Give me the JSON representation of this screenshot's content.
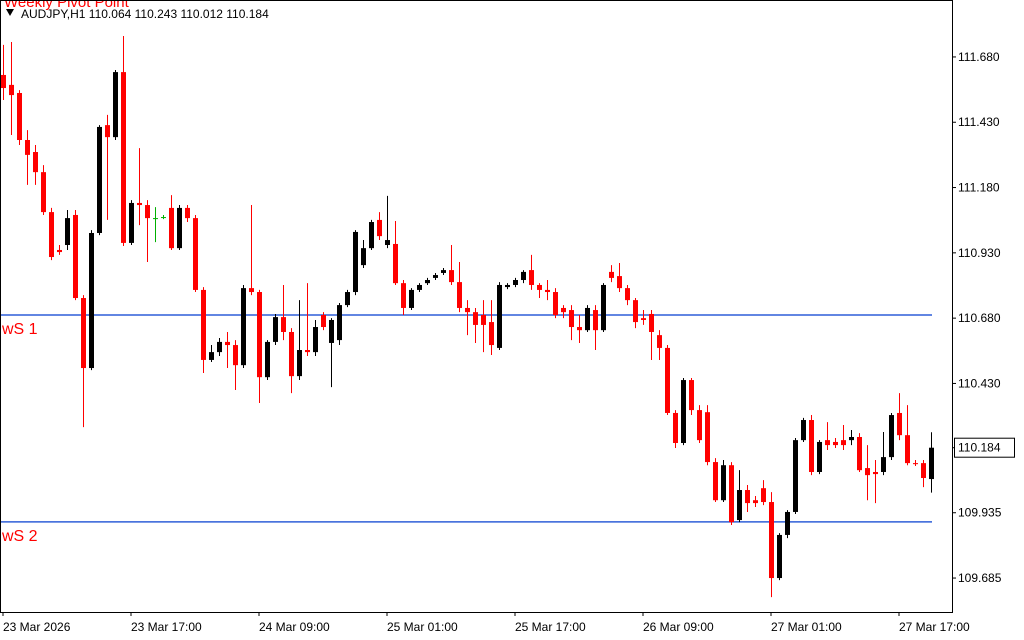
{
  "chart_data": {
    "type": "candlestick",
    "title": "Weekly Pivot Point",
    "header": "AUDJPY,H1  110.064 110.243 110.012 110.184",
    "categories": [
      "23 Mar 2026",
      null,
      null,
      null,
      null,
      null,
      null,
      null,
      null,
      null,
      null,
      null,
      null,
      null,
      null,
      null,
      "23 Mar 17:00",
      null,
      null,
      null,
      null,
      null,
      null,
      null,
      null,
      null,
      null,
      null,
      null,
      null,
      null,
      null,
      "24 Mar 09:00",
      null,
      null,
      null,
      null,
      null,
      null,
      null,
      null,
      null,
      null,
      null,
      null,
      null,
      null,
      null,
      "25 Mar 01:00",
      null,
      null,
      null,
      null,
      null,
      null,
      null,
      null,
      null,
      null,
      null,
      null,
      null,
      null,
      null,
      "25 Mar 17:00",
      null,
      null,
      null,
      null,
      null,
      null,
      null,
      null,
      null,
      null,
      null,
      null,
      null,
      null,
      null,
      "26 Mar 09:00",
      null,
      null,
      null,
      null,
      null,
      null,
      null,
      null,
      null,
      null,
      null,
      null,
      null,
      null,
      null,
      "27 Mar 01:00",
      null,
      null,
      null,
      null,
      null,
      null,
      null,
      null,
      null,
      null,
      null,
      null,
      null,
      null,
      null,
      "27 Mar 17:00",
      null,
      null,
      null,
      null
    ],
    "open": [
      111.611,
      111.573,
      111.542,
      111.362,
      111.316,
      111.239,
      111.086,
      110.941,
      110.96,
      111.075,
      110.757,
      110.489,
      111.006,
      111.419,
      111.373,
      111.622,
      110.968,
      111.121,
      111.113,
      111.063,
      111.067,
      111.102,
      110.948,
      111.102,
      111.063,
      110.788,
      110.52,
      110.55,
      110.589,
      110.577,
      110.5,
      110.795,
      110.78,
      110.454,
      110.589,
      110.684,
      110.627,
      110.458,
      110.558,
      110.55,
      110.692,
      110.585,
      110.596,
      110.73,
      110.78,
      110.883,
      110.948,
      111.056,
      110.96,
      110.964,
      110.814,
      110.719,
      110.788,
      110.814,
      110.834,
      110.853,
      110.864,
      110.818,
      110.719,
      110.703,
      110.692,
      110.665,
      110.566,
      110.799,
      110.807,
      110.826,
      110.864,
      110.807,
      110.788,
      110.78,
      110.719,
      110.711,
      110.646,
      110.634,
      110.711,
      110.634,
      110.857,
      110.841,
      110.795,
      110.749,
      110.68,
      110.696,
      110.615,
      110.566,
      110.317,
      110.202,
      110.443,
      110.328,
      110.32,
      110.129,
      109.983,
      110.117,
      109.907,
      110.022,
      109.983,
      110.029,
      109.976,
      109.685,
      109.85,
      109.938,
      110.213,
      110.29,
      110.091,
      110.213,
      110.206,
      110.213,
      110.213,
      110.225,
      110.106,
      110.091,
      110.091,
      110.148,
      110.317,
      110.232,
      110.125,
      110.125,
      110.064
    ],
    "high": [
      111.726,
      111.737,
      111.553,
      111.4,
      111.343,
      111.266,
      111.102,
      110.96,
      111.094,
      111.094,
      110.768,
      111.017,
      111.419,
      111.458,
      111.63,
      111.76,
      111.132,
      111.331,
      111.132,
      111.105,
      111.075,
      111.151,
      111.113,
      111.113,
      111.075,
      110.799,
      110.577,
      110.604,
      110.627,
      110.596,
      110.807,
      111.113,
      110.788,
      110.596,
      110.696,
      110.807,
      110.642,
      110.749,
      110.814,
      110.673,
      110.703,
      110.68,
      110.738,
      110.788,
      111.017,
      110.979,
      111.056,
      111.086,
      111.148,
      111.052,
      110.826,
      110.795,
      110.814,
      110.834,
      110.853,
      110.872,
      110.96,
      110.895,
      110.749,
      110.719,
      110.749,
      110.749,
      110.818,
      110.814,
      110.834,
      110.864,
      110.922,
      110.814,
      110.826,
      110.795,
      110.73,
      110.73,
      110.692,
      110.73,
      110.73,
      110.814,
      110.883,
      110.891,
      110.807,
      110.757,
      110.711,
      110.711,
      110.634,
      110.577,
      110.328,
      110.451,
      110.451,
      110.347,
      110.347,
      110.144,
      110.137,
      110.129,
      110.098,
      110.041,
      109.999,
      110.06,
      110.014,
      109.857,
      109.945,
      110.221,
      110.298,
      110.309,
      110.213,
      110.282,
      110.221,
      110.271,
      110.252,
      110.24,
      110.194,
      110.137,
      110.244,
      110.317,
      110.393,
      110.347,
      110.137,
      110.137,
      110.243
    ],
    "low": [
      111.515,
      111.381,
      111.343,
      111.19,
      111.19,
      111.075,
      110.902,
      110.922,
      110.941,
      110.749,
      110.263,
      110.481,
      110.998,
      111.056,
      111.362,
      110.956,
      110.96,
      111.036,
      110.895,
      110.971,
      111.059,
      110.941,
      110.941,
      111.048,
      110.78,
      110.47,
      110.512,
      110.535,
      110.489,
      110.405,
      110.489,
      110.768,
      110.355,
      110.443,
      110.577,
      110.596,
      110.393,
      110.443,
      110.535,
      110.535,
      110.634,
      110.416,
      110.577,
      110.722,
      110.768,
      110.872,
      110.941,
      110.979,
      110.948,
      110.807,
      110.692,
      110.711,
      110.78,
      110.807,
      110.826,
      110.845,
      110.807,
      110.703,
      110.615,
      110.585,
      110.55,
      110.539,
      110.558,
      110.791,
      110.799,
      110.814,
      110.788,
      110.757,
      110.749,
      110.68,
      110.68,
      110.596,
      110.585,
      110.627,
      110.558,
      110.627,
      110.818,
      110.78,
      110.73,
      110.642,
      110.654,
      110.52,
      110.52,
      110.309,
      110.183,
      110.194,
      110.309,
      110.202,
      110.117,
      109.976,
      109.976,
      109.888,
      109.899,
      109.938,
      109.957,
      109.964,
      109.612,
      109.677,
      109.838,
      109.93,
      110.206,
      110.079,
      110.083,
      110.175,
      110.183,
      110.175,
      110.194,
      110.091,
      109.983,
      109.972,
      110.079,
      110.137,
      110.213,
      110.117,
      110.114,
      110.033,
      110.012
    ],
    "close": [
      111.561,
      111.534,
      111.362,
      111.305,
      111.239,
      111.086,
      110.914,
      110.933,
      111.063,
      110.757,
      110.489,
      111.006,
      111.412,
      111.373,
      111.622,
      110.968,
      111.121,
      111.113,
      111.063,
      111.063,
      111.067,
      110.948,
      111.102,
      111.063,
      110.788,
      110.52,
      110.55,
      110.589,
      110.577,
      110.5,
      110.795,
      110.78,
      110.454,
      110.589,
      110.684,
      110.627,
      110.458,
      110.558,
      110.55,
      110.646,
      110.646,
      110.673,
      110.73,
      110.78,
      111.01,
      110.948,
      111.048,
      110.994,
      110.979,
      110.814,
      110.719,
      110.788,
      110.807,
      110.826,
      110.845,
      110.864,
      110.818,
      110.719,
      110.703,
      110.654,
      110.654,
      110.577,
      110.807,
      110.807,
      110.826,
      110.857,
      110.807,
      110.788,
      110.78,
      110.692,
      110.703,
      110.646,
      110.634,
      110.719,
      110.634,
      110.807,
      110.834,
      110.795,
      110.749,
      110.665,
      110.673,
      110.627,
      110.566,
      110.317,
      110.202,
      110.443,
      110.328,
      110.213,
      110.129,
      109.983,
      110.117,
      109.899,
      110.022,
      109.972,
      109.972,
      109.976,
      109.685,
      109.85,
      109.938,
      110.213,
      110.29,
      110.091,
      110.206,
      110.194,
      110.194,
      110.194,
      110.225,
      110.098,
      110.079,
      110.083,
      110.148,
      110.309,
      110.232,
      110.125,
      110.121,
      110.068,
      110.184
    ],
    "bull_color": "#000000",
    "bear_color": "#ff0000",
    "doji_color": "#00b000",
    "levels": [
      {
        "name": "wS 1",
        "value": 110.692,
        "color": "#2f5fd8"
      },
      {
        "name": "wS 2",
        "value": 109.9,
        "color": "#2f5fd8"
      }
    ],
    "current_price": 110.184,
    "ylim": [
      109.555,
      111.898
    ],
    "yticks": [
      {
        "value": 111.68,
        "label": "111.680"
      },
      {
        "value": 111.43,
        "label": "111.430"
      },
      {
        "value": 111.18,
        "label": "111.180"
      },
      {
        "value": 110.93,
        "label": "110.930"
      },
      {
        "value": 110.68,
        "label": "110.680"
      },
      {
        "value": 110.43,
        "label": "110.430"
      },
      {
        "value": 109.935,
        "label": "109.935"
      },
      {
        "value": 109.685,
        "label": "109.685"
      }
    ],
    "grid": false
  }
}
